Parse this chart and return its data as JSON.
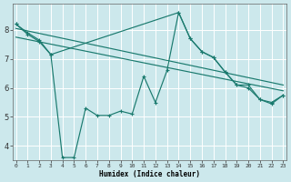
{
  "xlabel": "Humidex (Indice chaleur)",
  "bg_color": "#cce8ec",
  "grid_color": "#ffffff",
  "line_color": "#1a7a6e",
  "x_ticks": [
    0,
    1,
    2,
    3,
    4,
    5,
    6,
    7,
    8,
    9,
    10,
    11,
    12,
    13,
    14,
    15,
    16,
    17,
    18,
    19,
    20,
    21,
    22,
    23
  ],
  "x_tick_labels": [
    "0",
    "1",
    "2",
    "3",
    "4",
    "5",
    "6",
    "7",
    "8",
    "9",
    "10",
    "11",
    "12",
    "13",
    "14",
    "15",
    "16",
    "17",
    "18",
    "19",
    "20",
    "21",
    "22",
    "23"
  ],
  "y_ticks": [
    4,
    5,
    6,
    7,
    8
  ],
  "xlim": [
    -0.3,
    23.3
  ],
  "ylim": [
    3.5,
    8.9
  ],
  "series1_x": [
    0,
    1,
    2,
    3,
    4,
    5,
    6,
    7,
    8,
    9,
    10,
    11,
    12,
    13,
    14,
    15,
    16,
    17,
    18,
    19,
    20,
    21,
    22,
    23
  ],
  "series1_y": [
    8.2,
    7.9,
    7.65,
    7.15,
    3.6,
    3.6,
    5.3,
    5.05,
    5.05,
    5.2,
    5.1,
    6.4,
    5.5,
    6.6,
    8.6,
    7.7,
    7.25,
    7.05,
    6.55,
    6.1,
    6.1,
    5.6,
    5.5,
    5.75
  ],
  "series2_x": [
    0,
    1,
    2,
    3,
    14,
    15,
    16,
    17,
    18,
    19,
    20,
    21,
    22,
    23
  ],
  "series2_y": [
    8.2,
    7.85,
    7.6,
    7.15,
    8.6,
    7.7,
    7.25,
    7.05,
    6.55,
    6.1,
    6.0,
    5.6,
    5.45,
    5.75
  ],
  "trend1_x": [
    0,
    23
  ],
  "trend1_y": [
    8.05,
    6.1
  ],
  "trend2_x": [
    0,
    23
  ],
  "trend2_y": [
    7.75,
    5.9
  ]
}
